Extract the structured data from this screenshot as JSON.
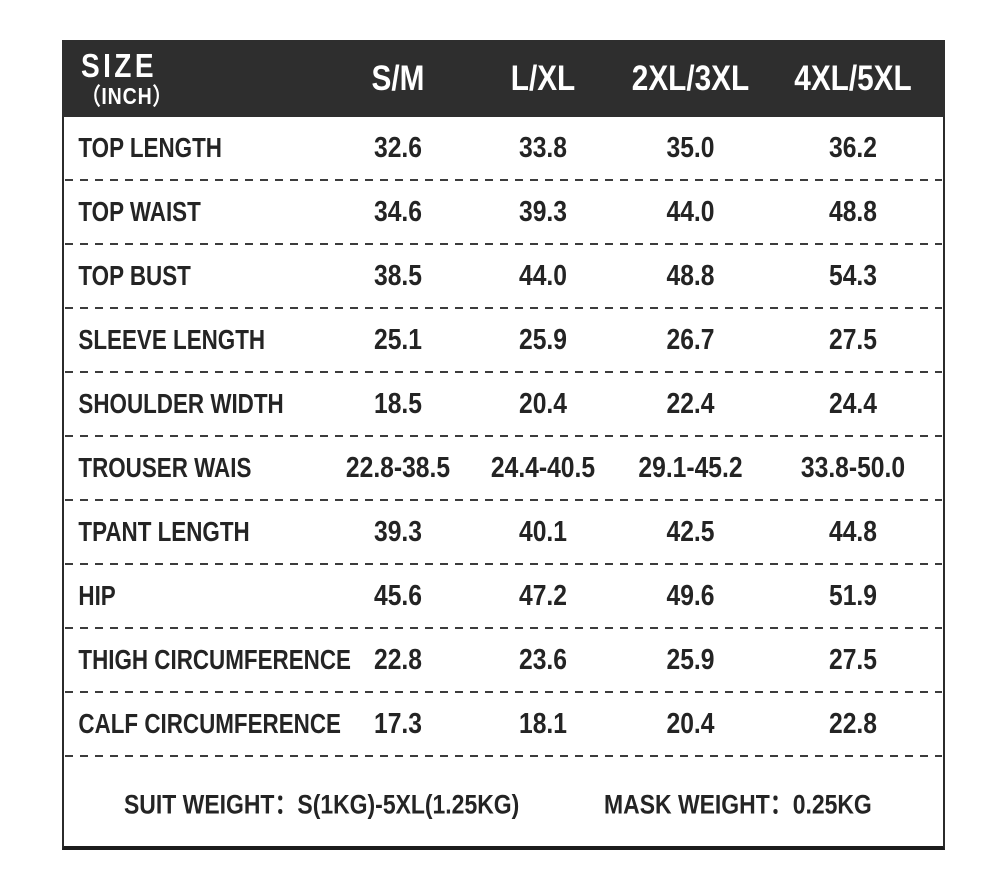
{
  "colors": {
    "header_bg": "#2e2e2e",
    "header_text": "#ffffff",
    "body_text": "#242424",
    "border": "#2b2b2b",
    "page_bg": "#ffffff"
  },
  "chart_data": {
    "type": "table",
    "title": "SIZE（INCH）",
    "header": {
      "size_label_line1": "SIZE",
      "size_label_line2": "（INCH）"
    },
    "columns": [
      "S/M",
      "L/XL",
      "2XL/3XL",
      "4XL/5XL"
    ],
    "rows": [
      {
        "label": "TOP LENGTH",
        "values": [
          "32.6",
          "33.8",
          "35.0",
          "36.2"
        ]
      },
      {
        "label": "TOP WAIST",
        "values": [
          "34.6",
          "39.3",
          "44.0",
          "48.8"
        ]
      },
      {
        "label": "TOP BUST",
        "values": [
          "38.5",
          "44.0",
          "48.8",
          "54.3"
        ]
      },
      {
        "label": "SLEEVE LENGTH",
        "values": [
          "25.1",
          "25.9",
          "26.7",
          "27.5"
        ]
      },
      {
        "label": "SHOULDER WIDTH",
        "values": [
          "18.5",
          "20.4",
          "22.4",
          "24.4"
        ]
      },
      {
        "label": "TROUSER WAIS",
        "values": [
          "22.8-38.5",
          "24.4-40.5",
          "29.1-45.2",
          "33.8-50.0"
        ]
      },
      {
        "label": "TPANT LENGTH",
        "values": [
          "39.3",
          "40.1",
          "42.5",
          "44.8"
        ]
      },
      {
        "label": "HIP",
        "values": [
          "45.6",
          "47.2",
          "49.6",
          "51.9"
        ]
      },
      {
        "label": "THIGH CIRCUMFERENCE",
        "values": [
          "22.8",
          "23.6",
          "25.9",
          "27.5"
        ]
      },
      {
        "label": "CALF CIRCUMFERENCE",
        "values": [
          "17.3",
          "18.1",
          "20.4",
          "22.8"
        ]
      }
    ],
    "notes": {
      "suit_weight": "SUIT WEIGHT：S(1KG)-5XL(1.25KG)",
      "mask_weight": "MASK WEIGHT：0.25KG"
    }
  }
}
